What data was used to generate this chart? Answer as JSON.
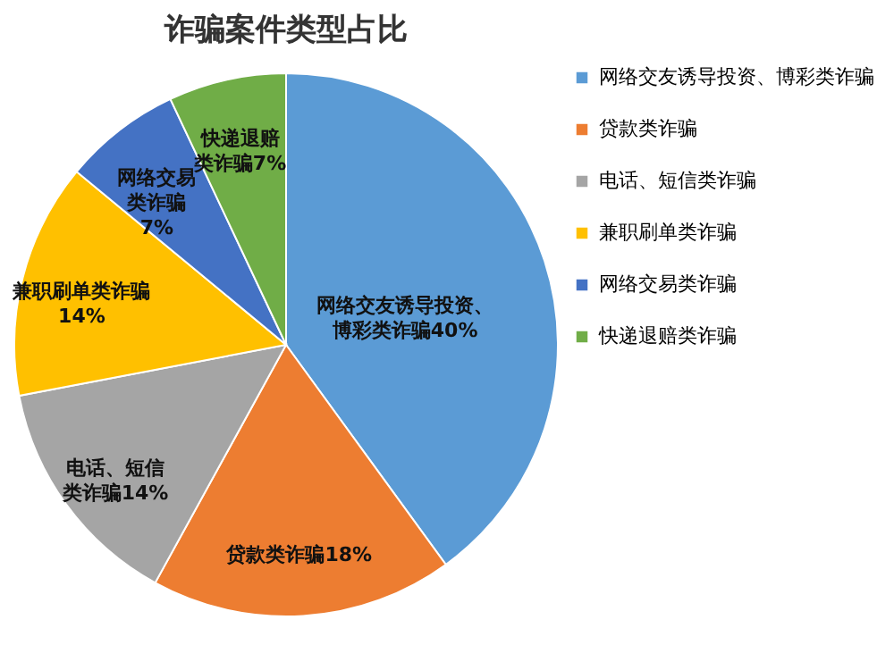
{
  "chart_data": {
    "type": "pie",
    "title": "诈骗案件类型占比",
    "categories": [
      "网络交友诱导投资、博彩类诈骗",
      "贷款类诈骗",
      "电话、短信类诈骗",
      "兼职刷单类诈骗",
      "网络交易类诈骗",
      "快递退赔类诈骗"
    ],
    "values": [
      40,
      18,
      14,
      14,
      7,
      7
    ],
    "value_labels": [
      "网络交友诱导投资、博彩类诈骗40%",
      "贷款类诈骗18%",
      "电话、短信类诈骗14%",
      "兼职刷单类诈骗14%",
      "网络交易类诈骗7%",
      "快递退赔类诈骗7%"
    ],
    "colors": [
      "#5b9bd5",
      "#ed7d31",
      "#a5a5a5",
      "#ffc000",
      "#4472c4",
      "#70ad47"
    ],
    "legend": "right"
  }
}
